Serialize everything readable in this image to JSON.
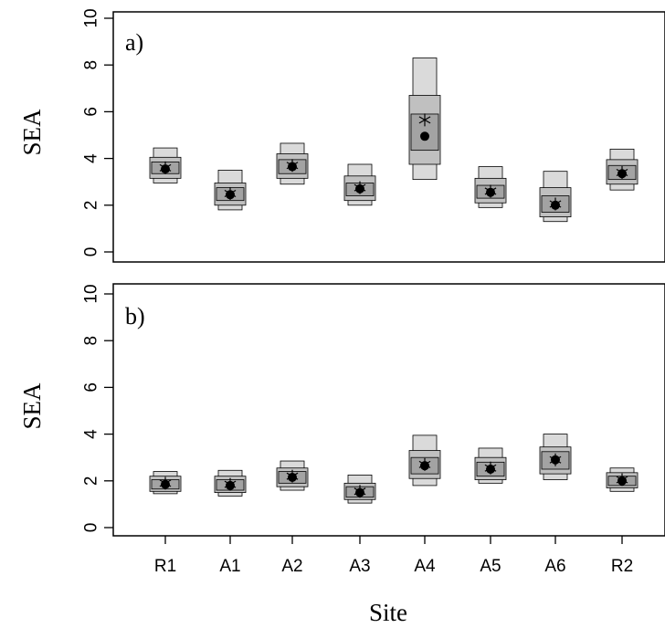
{
  "chart_data": [
    {
      "type": "box",
      "panel_label": "a)",
      "ylabel": "SEA",
      "ylim": [
        0,
        10
      ],
      "yticks": [
        0,
        2,
        4,
        6,
        8,
        10
      ],
      "categories": [
        "R1",
        "A1",
        "A2",
        "A3",
        "A4",
        "A5",
        "A6",
        "R2"
      ],
      "credible_intervals": [
        {
          "site": "R1",
          "ci50": [
            3.35,
            3.85
          ],
          "ci75": [
            3.15,
            4.05
          ],
          "ci95": [
            2.95,
            4.45
          ],
          "mode": 3.55,
          "mean": 3.6
        },
        {
          "site": "A1",
          "ci50": [
            2.2,
            2.75
          ],
          "ci75": [
            2.0,
            2.95
          ],
          "ci95": [
            1.8,
            3.5
          ],
          "mode": 2.45,
          "mean": 2.5
        },
        {
          "site": "A2",
          "ci50": [
            3.35,
            3.95
          ],
          "ci75": [
            3.15,
            4.2
          ],
          "ci95": [
            2.9,
            4.65
          ],
          "mode": 3.65,
          "mean": 3.7
        },
        {
          "site": "A3",
          "ci50": [
            2.4,
            2.95
          ],
          "ci75": [
            2.2,
            3.25
          ],
          "ci95": [
            2.0,
            3.75
          ],
          "mode": 2.7,
          "mean": 2.75
        },
        {
          "site": "A4",
          "ci50": [
            4.35,
            5.9
          ],
          "ci75": [
            3.75,
            6.7
          ],
          "ci95": [
            3.1,
            8.3
          ],
          "mode": 4.95,
          "mean": 5.65
        },
        {
          "site": "A5",
          "ci50": [
            2.3,
            2.85
          ],
          "ci75": [
            2.1,
            3.15
          ],
          "ci95": [
            1.9,
            3.65
          ],
          "mode": 2.55,
          "mean": 2.6
        },
        {
          "site": "A6",
          "ci50": [
            1.7,
            2.4
          ],
          "ci75": [
            1.5,
            2.75
          ],
          "ci95": [
            1.3,
            3.45
          ],
          "mode": 2.0,
          "mean": 2.05
        },
        {
          "site": "R2",
          "ci50": [
            3.1,
            3.7
          ],
          "ci75": [
            2.9,
            3.95
          ],
          "ci95": [
            2.65,
            4.4
          ],
          "mode": 3.35,
          "mean": 3.4
        }
      ]
    },
    {
      "type": "box",
      "panel_label": "b)",
      "ylabel": "SEA",
      "xlabel": "Site",
      "ylim": [
        0,
        10
      ],
      "yticks": [
        0,
        2,
        4,
        6,
        8,
        10
      ],
      "categories": [
        "R1",
        "A1",
        "A2",
        "A3",
        "A4",
        "A5",
        "A6",
        "R2"
      ],
      "credible_intervals": [
        {
          "site": "R1",
          "ci50": [
            1.65,
            2.05
          ],
          "ci75": [
            1.55,
            2.2
          ],
          "ci95": [
            1.45,
            2.4
          ],
          "mode": 1.85,
          "mean": 1.9
        },
        {
          "site": "A1",
          "ci50": [
            1.6,
            2.05
          ],
          "ci75": [
            1.5,
            2.2
          ],
          "ci95": [
            1.35,
            2.45
          ],
          "mode": 1.8,
          "mean": 1.85
        },
        {
          "site": "A2",
          "ci50": [
            1.9,
            2.4
          ],
          "ci75": [
            1.75,
            2.55
          ],
          "ci95": [
            1.6,
            2.85
          ],
          "mode": 2.15,
          "mean": 2.2
        },
        {
          "site": "A3",
          "ci50": [
            1.3,
            1.75
          ],
          "ci75": [
            1.2,
            1.9
          ],
          "ci95": [
            1.05,
            2.25
          ],
          "mode": 1.5,
          "mean": 1.55
        },
        {
          "site": "A4",
          "ci50": [
            2.3,
            3.0
          ],
          "ci75": [
            2.1,
            3.3
          ],
          "ci95": [
            1.8,
            3.95
          ],
          "mode": 2.65,
          "mean": 2.7
        },
        {
          "site": "A5",
          "ci50": [
            2.2,
            2.8
          ],
          "ci75": [
            2.05,
            3.0
          ],
          "ci95": [
            1.9,
            3.4
          ],
          "mode": 2.5,
          "mean": 2.55
        },
        {
          "site": "A6",
          "ci50": [
            2.5,
            3.25
          ],
          "ci75": [
            2.3,
            3.45
          ],
          "ci95": [
            2.05,
            4.0
          ],
          "mode": 2.9,
          "mean": 2.9
        },
        {
          "site": "R2",
          "ci50": [
            1.8,
            2.2
          ],
          "ci75": [
            1.7,
            2.35
          ],
          "ci95": [
            1.55,
            2.55
          ],
          "mode": 2.0,
          "mean": 2.05
        }
      ]
    }
  ],
  "colors": {
    "ci50": "#a3a3a3",
    "ci75": "#c0c0c0",
    "ci95": "#dadada",
    "stroke": "#000000",
    "mode": "#000000"
  }
}
